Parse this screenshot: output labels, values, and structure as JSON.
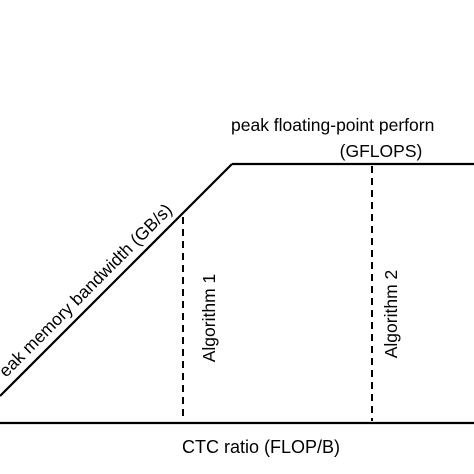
{
  "diagram": {
    "title_line1": "peak floating-point perforn",
    "title_line2": "(GFLOPS)",
    "slope_label": "eak memory bandwidth (GB/s)",
    "algorithm1_label": "Algorithm 1",
    "algorithm2_label": "Algorithm 2",
    "x_axis_label": "CTC ratio (FLOP/B)"
  },
  "colors": {
    "line": "#000000",
    "background": "#ffffff"
  }
}
